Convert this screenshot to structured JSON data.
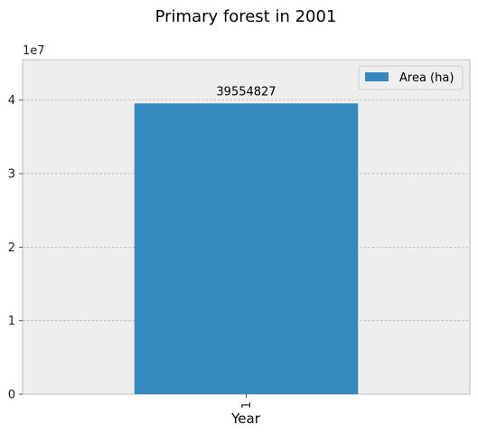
{
  "chart_data": {
    "type": "bar",
    "title": "Primary forest in 2001",
    "xlabel": "Year",
    "ylabel": "",
    "categories": [
      "1"
    ],
    "series": [
      {
        "name": "Area (ha)",
        "values": [
          39554827
        ],
        "color": "#348abd"
      }
    ],
    "bar_labels": [
      "39554827"
    ],
    "ylim": [
      0,
      45500000
    ],
    "yticks": [
      0,
      10000000,
      20000000,
      30000000,
      40000000
    ],
    "ytick_labels": [
      "0",
      "1",
      "2",
      "3",
      "4"
    ],
    "y_offset_text": "1e7",
    "grid": true,
    "legend_position": "top-right",
    "style": {
      "plot_bg": "#eeeeee",
      "frame": "#bcbcbc",
      "grid": "#b2b2b2"
    }
  }
}
